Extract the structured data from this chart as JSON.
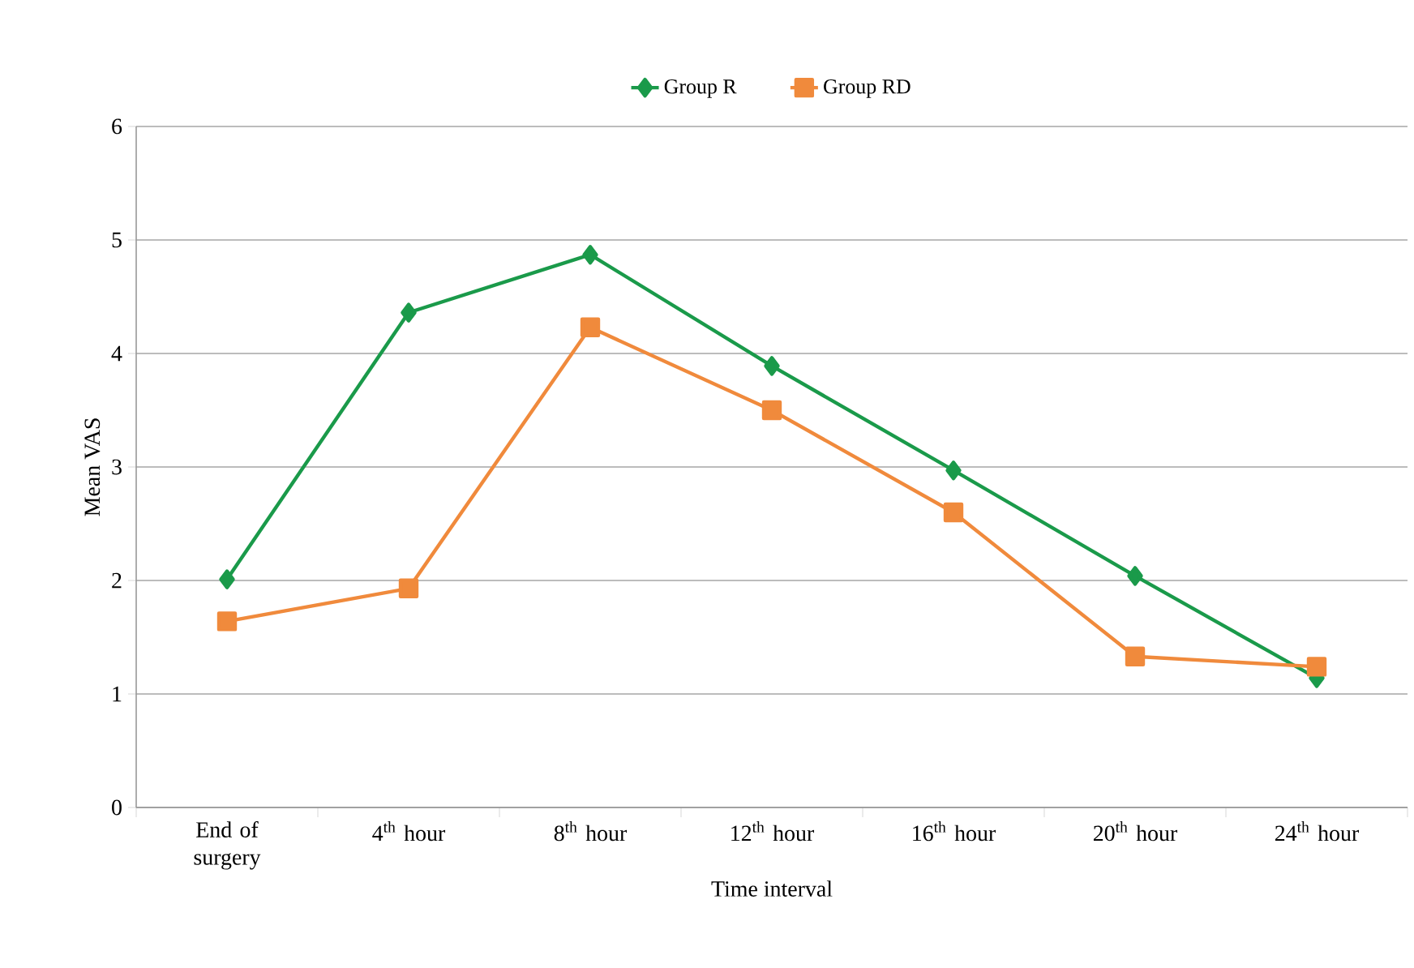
{
  "chart_data": {
    "type": "line",
    "xlabel": "Time interval",
    "ylabel": "Mean VAS",
    "categories": [
      "End of surgery",
      "4$^{th}$ hour",
      "8$^{th}$ hour",
      "12$^{th}$ hour",
      "16$^{th}$ hour",
      "20$^{th}$ hour",
      "24$^{th}$ hour"
    ],
    "series": [
      {
        "name": "Group R",
        "color": "#1a9a4a",
        "marker": "diamond",
        "values": [
          2.01,
          4.36,
          4.87,
          3.89,
          2.97,
          2.04,
          1.14
        ]
      },
      {
        "name": "Group RD",
        "color": "#f08a3c",
        "marker": "square",
        "values": [
          1.64,
          1.93,
          4.23,
          3.5,
          2.6,
          1.33,
          1.24
        ]
      }
    ],
    "ylim": [
      0,
      6
    ],
    "yticks": [
      0,
      1,
      2,
      3,
      4,
      5,
      6
    ],
    "grid": "y",
    "legend": "top",
    "line_style": "solid"
  }
}
